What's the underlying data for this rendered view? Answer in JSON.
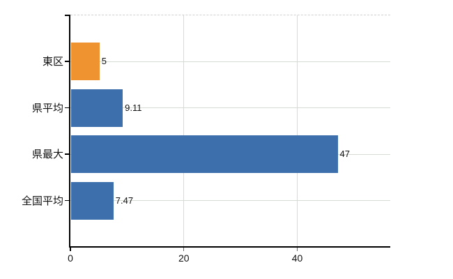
{
  "chart_data": {
    "type": "bar",
    "orientation": "horizontal",
    "title": "",
    "xlabel": "",
    "ylabel": "",
    "categories": [
      "東区",
      "県平均",
      "県最大",
      "全国平均"
    ],
    "values": [
      5,
      9.11,
      47,
      7.47
    ],
    "value_labels": [
      "5",
      "9.11",
      "47",
      "7.47"
    ],
    "bar_colors": [
      "#EF9331",
      "#3E6FAD",
      "#3E6FAD",
      "#3E6FAD"
    ],
    "x_ticks": [
      0,
      20,
      40
    ],
    "x_tick_labels": [
      "0",
      "20",
      "40"
    ],
    "xlim": [
      0,
      56.4
    ],
    "grid": true,
    "legend": false,
    "top_border_style": "dashed"
  },
  "colors": {
    "bar_blue": "#3E6FAD",
    "bar_orange": "#EF9331",
    "gridline_h": "#D6DBD4",
    "gridline_v": "#D9D9D9",
    "top_dashed": "#CFCFCF",
    "axis": "#000000",
    "minor_tick": "#666666",
    "text": "#111111",
    "background": "#FFFFFF"
  }
}
